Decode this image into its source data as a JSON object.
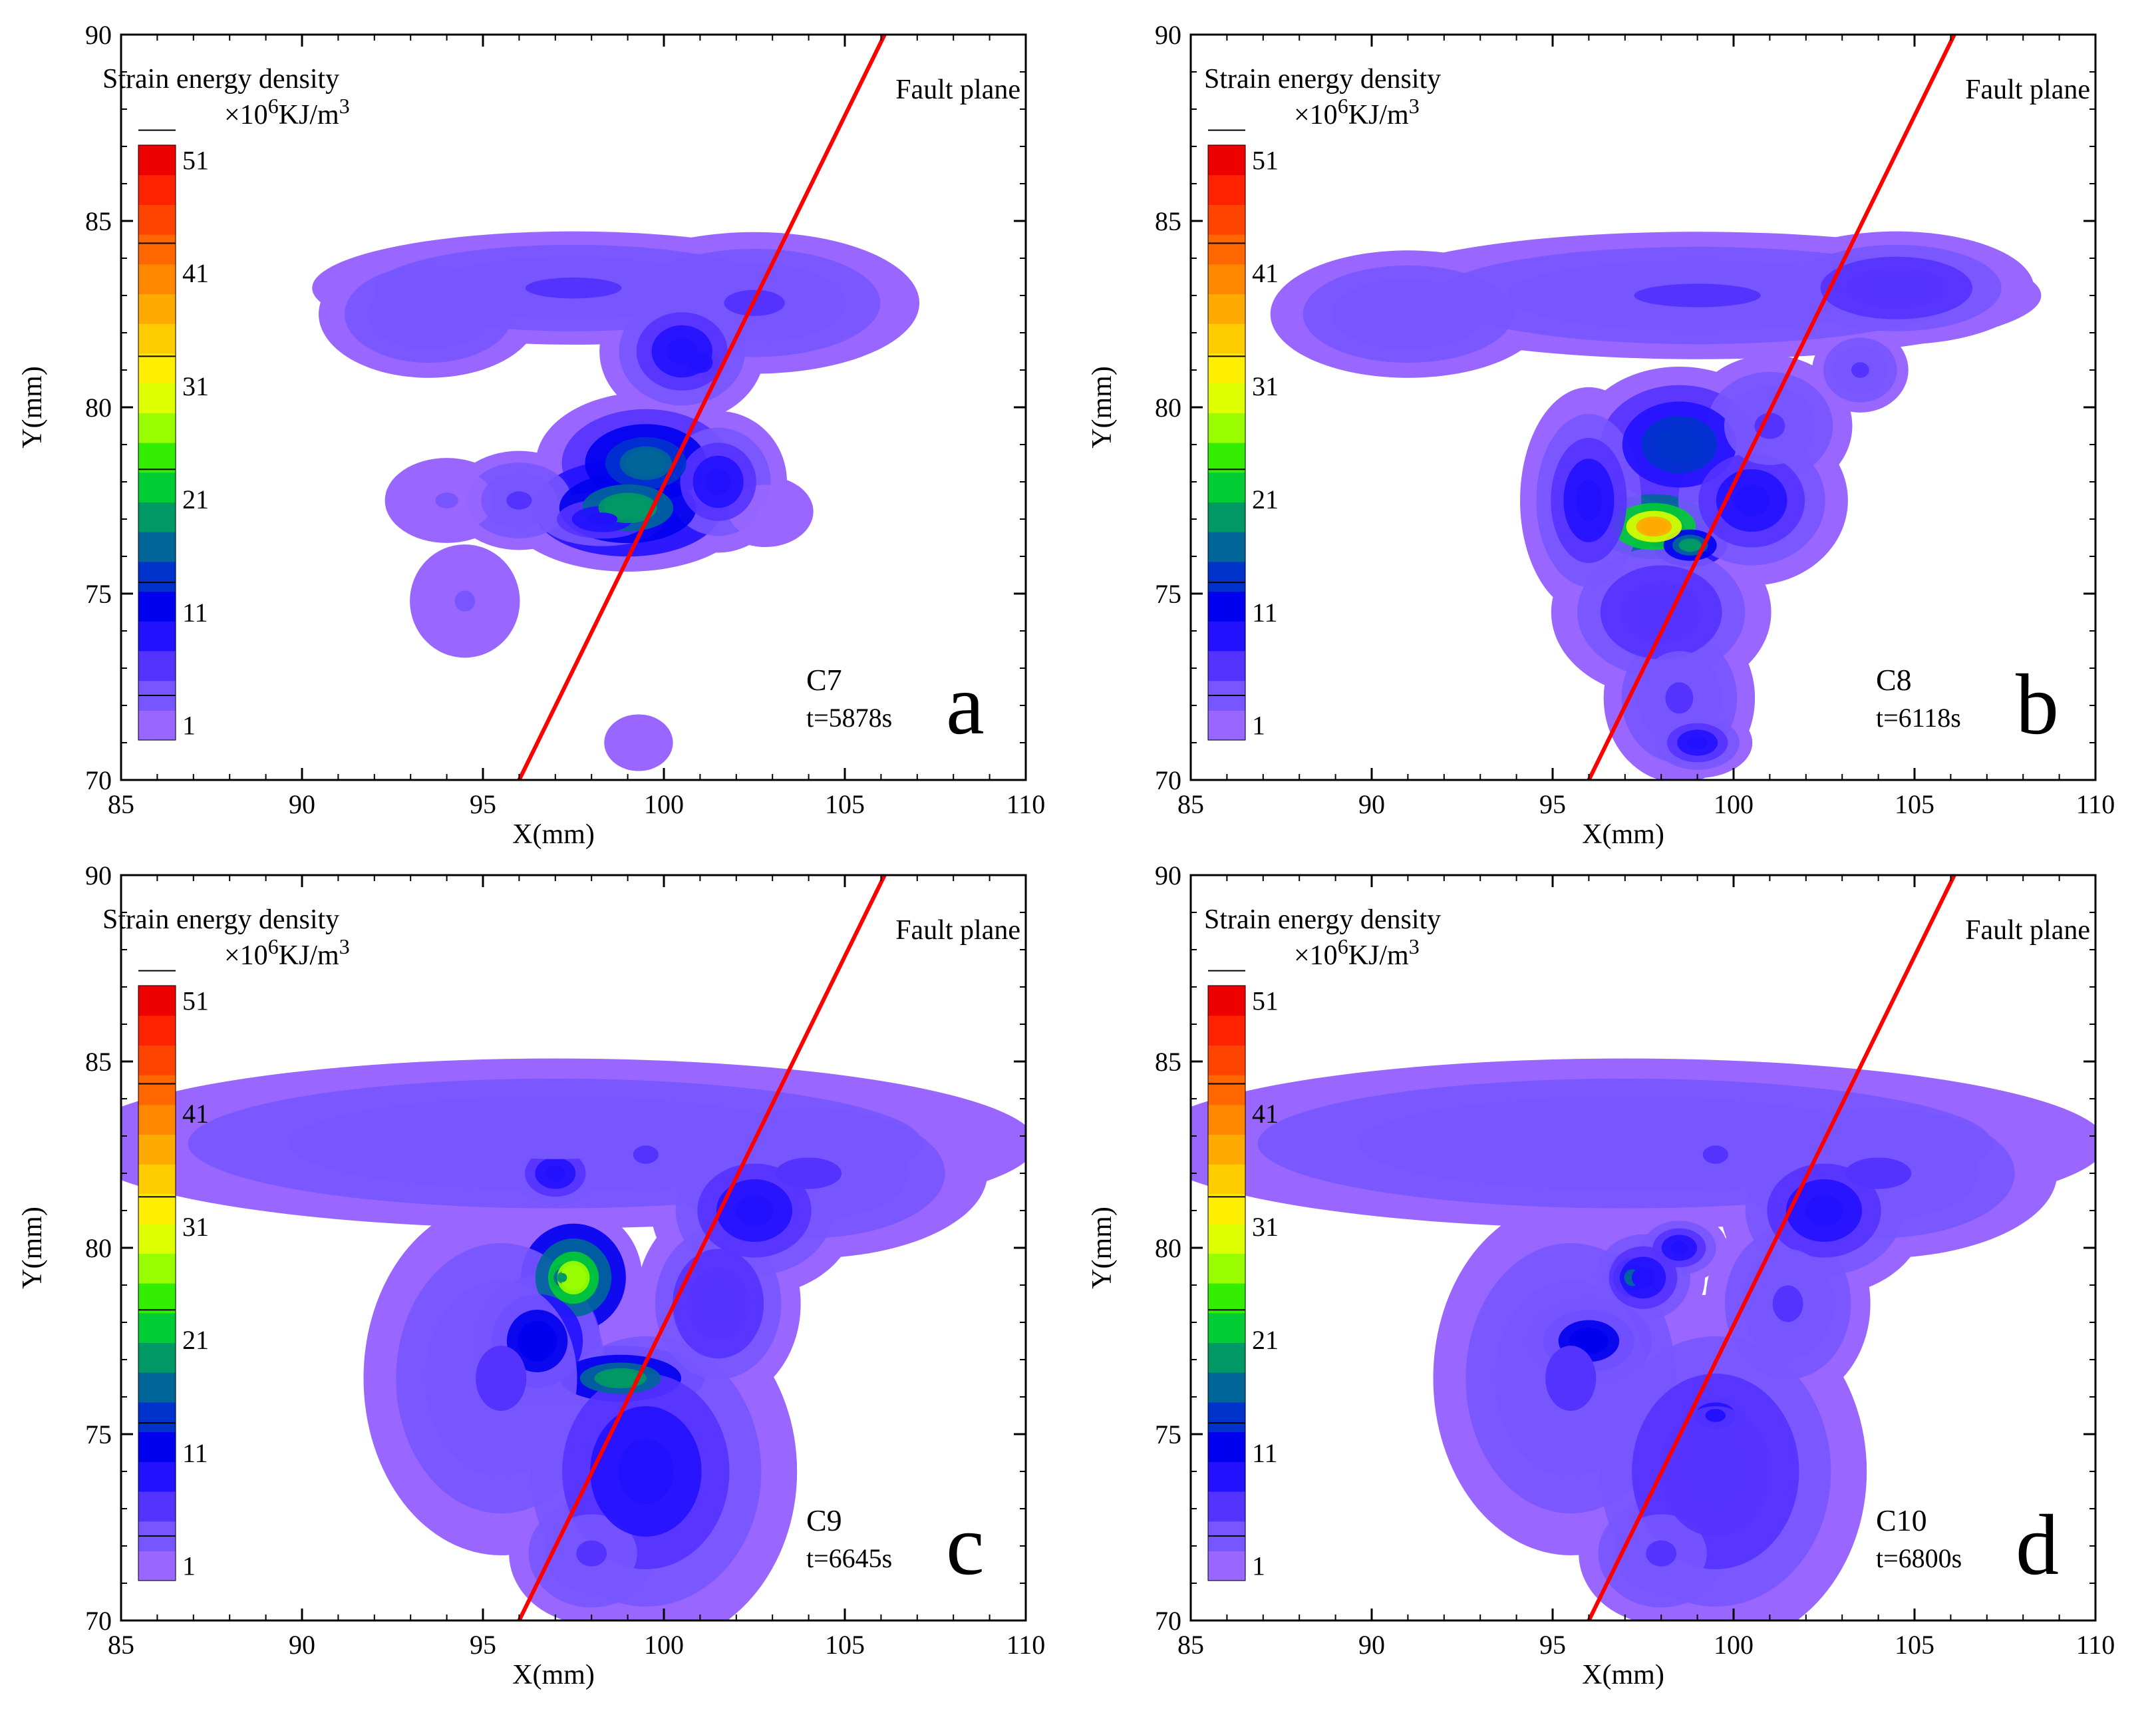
{
  "chart_data": [
    {
      "type": "contour",
      "panel_letter": "a",
      "specimen": "C7",
      "time_label": "t=5878s",
      "xlabel": "X(mm)",
      "ylabel": "Y(mm)",
      "xlim": [
        85,
        110
      ],
      "ylim": [
        70,
        90
      ],
      "x_ticks": [
        85,
        90,
        95,
        100,
        105,
        110
      ],
      "y_ticks": [
        70,
        75,
        80,
        85,
        90
      ],
      "colorbar_title": "Strain energy density",
      "colorbar_unit": "×10^6KJ/m^3",
      "colorbar_ticks": [
        1,
        11,
        21,
        31,
        41,
        51
      ],
      "fault_label": "Fault plane",
      "fault_line": [
        [
          96,
          70
        ],
        [
          106.1,
          90
        ]
      ],
      "blobs": [
        {
          "x": 97.5,
          "y": 83.2,
          "sx": 3.8,
          "sy": 0.8,
          "v": 6
        },
        {
          "x": 102.5,
          "y": 82.8,
          "sx": 2.4,
          "sy": 1.0,
          "v": 6
        },
        {
          "x": 93.5,
          "y": 82.5,
          "sx": 1.6,
          "sy": 0.9,
          "v": 4
        },
        {
          "x": 100.5,
          "y": 81.5,
          "sx": 1.2,
          "sy": 1.0,
          "v": 8
        },
        {
          "x": 101.0,
          "y": 81.2,
          "sx": 0.5,
          "sy": 0.4,
          "v": 8
        },
        {
          "x": 99.5,
          "y": 78.5,
          "sx": 1.6,
          "sy": 1.0,
          "v": 16
        },
        {
          "x": 99.0,
          "y": 77.3,
          "sx": 1.8,
          "sy": 0.9,
          "v": 20
        },
        {
          "x": 98.3,
          "y": 77.0,
          "sx": 1.2,
          "sy": 0.5,
          "v": 8
        },
        {
          "x": 101.5,
          "y": 78.0,
          "sx": 1.0,
          "sy": 1.0,
          "v": 10
        },
        {
          "x": 96.0,
          "y": 77.5,
          "sx": 1.0,
          "sy": 0.7,
          "v": 5
        },
        {
          "x": 94.0,
          "y": 77.5,
          "sx": 0.9,
          "sy": 0.6,
          "v": 3
        },
        {
          "x": 94.5,
          "y": 74.8,
          "sx": 0.8,
          "sy": 0.8,
          "v": 3
        },
        {
          "x": 102.8,
          "y": 77.2,
          "sx": 0.7,
          "sy": 0.5,
          "v": 2
        },
        {
          "x": 99.3,
          "y": 71.0,
          "sx": 0.5,
          "sy": 0.4,
          "v": 2
        }
      ]
    },
    {
      "type": "contour",
      "panel_letter": "b",
      "specimen": "C8",
      "time_label": "t=6118s",
      "xlabel": "X(mm)",
      "ylabel": "Y(mm)",
      "xlim": [
        85,
        110
      ],
      "ylim": [
        70,
        90
      ],
      "x_ticks": [
        85,
        90,
        95,
        100,
        105,
        110
      ],
      "y_ticks": [
        70,
        75,
        80,
        85,
        90
      ],
      "colorbar_title": "Strain energy density",
      "colorbar_unit": "×10^6KJ/m^3",
      "colorbar_ticks": [
        1,
        11,
        21,
        31,
        41,
        51
      ],
      "fault_label": "Fault plane",
      "fault_line": [
        [
          96,
          70
        ],
        [
          106.1,
          90
        ]
      ],
      "blobs": [
        {
          "x": 99.0,
          "y": 83.0,
          "sx": 5.0,
          "sy": 0.9,
          "v": 6
        },
        {
          "x": 104.5,
          "y": 83.2,
          "sx": 2.0,
          "sy": 0.8,
          "v": 7
        },
        {
          "x": 91.0,
          "y": 82.5,
          "sx": 2.0,
          "sy": 0.9,
          "v": 4
        },
        {
          "x": 103.5,
          "y": 81.0,
          "sx": 0.7,
          "sy": 0.6,
          "v": 6
        },
        {
          "x": 98.5,
          "y": 79.0,
          "sx": 1.5,
          "sy": 1.1,
          "v": 15
        },
        {
          "x": 97.8,
          "y": 76.8,
          "sx": 1.1,
          "sy": 0.6,
          "v": 38
        },
        {
          "x": 98.8,
          "y": 76.3,
          "sx": 0.7,
          "sy": 0.4,
          "v": 20
        },
        {
          "x": 100.5,
          "y": 77.5,
          "sx": 1.4,
          "sy": 1.2,
          "v": 8
        },
        {
          "x": 96.0,
          "y": 77.5,
          "sx": 1.0,
          "sy": 1.6,
          "v": 8
        },
        {
          "x": 98.0,
          "y": 74.5,
          "sx": 1.6,
          "sy": 1.2,
          "v": 7
        },
        {
          "x": 98.5,
          "y": 72.2,
          "sx": 1.1,
          "sy": 1.2,
          "v": 6
        },
        {
          "x": 99.0,
          "y": 71.0,
          "sx": 0.8,
          "sy": 0.5,
          "v": 9
        },
        {
          "x": 101.0,
          "y": 79.5,
          "sx": 1.2,
          "sy": 1.0,
          "v": 5
        }
      ]
    },
    {
      "type": "contour",
      "panel_letter": "c",
      "specimen": "C9",
      "time_label": "t=6645s",
      "xlabel": "X(mm)",
      "ylabel": "Y(mm)",
      "xlim": [
        85,
        110
      ],
      "ylim": [
        70,
        90
      ],
      "x_ticks": [
        85,
        90,
        95,
        100,
        105,
        110
      ],
      "y_ticks": [
        70,
        75,
        80,
        85,
        90
      ],
      "colorbar_title": "Strain energy density",
      "colorbar_unit": "×10^6KJ/m^3",
      "colorbar_ticks": [
        1,
        11,
        21,
        31,
        41,
        51
      ],
      "fault_label": "Fault plane",
      "fault_line": [
        [
          96,
          70
        ],
        [
          106.1,
          90
        ]
      ],
      "blobs": [
        {
          "x": 97.0,
          "y": 82.8,
          "sx": 7.0,
          "sy": 1.2,
          "v": 4
        },
        {
          "x": 104.0,
          "y": 82.0,
          "sx": 2.6,
          "sy": 1.2,
          "v": 5
        },
        {
          "x": 99.5,
          "y": 82.5,
          "sx": 1.0,
          "sy": 0.7,
          "v": 5
        },
        {
          "x": 97.0,
          "y": 82.0,
          "sx": 0.8,
          "sy": 0.6,
          "v": 8
        },
        {
          "x": 102.5,
          "y": 81.0,
          "sx": 1.5,
          "sy": 1.2,
          "v": 10
        },
        {
          "x": 97.5,
          "y": 79.2,
          "sx": 1.0,
          "sy": 1.0,
          "v": 28
        },
        {
          "x": 97.2,
          "y": 79.2,
          "sx": 0.35,
          "sy": 0.35,
          "v": 20
        },
        {
          "x": 98.8,
          "y": 76.5,
          "sx": 1.6,
          "sy": 0.6,
          "v": 20
        },
        {
          "x": 96.5,
          "y": 77.5,
          "sx": 1.2,
          "sy": 1.2,
          "v": 12
        },
        {
          "x": 99.5,
          "y": 74.0,
          "sx": 2.2,
          "sy": 2.5,
          "v": 8
        },
        {
          "x": 95.5,
          "y": 76.5,
          "sx": 2.0,
          "sy": 2.5,
          "v": 6
        },
        {
          "x": 98.0,
          "y": 71.8,
          "sx": 1.2,
          "sy": 1.0,
          "v": 5
        },
        {
          "x": 101.5,
          "y": 78.5,
          "sx": 1.2,
          "sy": 1.4,
          "v": 7
        }
      ]
    },
    {
      "type": "contour",
      "panel_letter": "d",
      "specimen": "C10",
      "time_label": "t=6800s",
      "xlabel": "X(mm)",
      "ylabel": "Y(mm)",
      "xlim": [
        85,
        110
      ],
      "ylim": [
        70,
        90
      ],
      "x_ticks": [
        85,
        90,
        95,
        100,
        105,
        110
      ],
      "y_ticks": [
        70,
        75,
        80,
        85,
        90
      ],
      "colorbar_title": "Strain energy density",
      "colorbar_unit": "×10^6KJ/m^3",
      "colorbar_ticks": [
        1,
        11,
        21,
        31,
        41,
        51
      ],
      "fault_label": "Fault plane",
      "fault_line": [
        [
          96,
          70
        ],
        [
          106.1,
          90
        ]
      ],
      "blobs": [
        {
          "x": 97.0,
          "y": 82.8,
          "sx": 7.0,
          "sy": 1.2,
          "v": 4
        },
        {
          "x": 104.0,
          "y": 82.0,
          "sx": 2.6,
          "sy": 1.2,
          "v": 5
        },
        {
          "x": 99.5,
          "y": 82.5,
          "sx": 1.0,
          "sy": 0.7,
          "v": 5
        },
        {
          "x": 102.5,
          "y": 81.0,
          "sx": 1.5,
          "sy": 1.2,
          "v": 9
        },
        {
          "x": 97.2,
          "y": 79.2,
          "sx": 0.5,
          "sy": 0.5,
          "v": 18
        },
        {
          "x": 97.5,
          "y": 79.2,
          "sx": 0.9,
          "sy": 0.8,
          "v": 8
        },
        {
          "x": 98.5,
          "y": 80.0,
          "sx": 0.7,
          "sy": 0.5,
          "v": 10
        },
        {
          "x": 96.0,
          "y": 77.5,
          "sx": 1.2,
          "sy": 0.8,
          "v": 12
        },
        {
          "x": 99.5,
          "y": 75.5,
          "sx": 0.8,
          "sy": 0.5,
          "v": 10
        },
        {
          "x": 99.5,
          "y": 74.0,
          "sx": 2.2,
          "sy": 2.5,
          "v": 7
        },
        {
          "x": 95.5,
          "y": 76.5,
          "sx": 2.0,
          "sy": 2.5,
          "v": 6
        },
        {
          "x": 98.0,
          "y": 71.8,
          "sx": 1.2,
          "sy": 1.0,
          "v": 5
        },
        {
          "x": 101.5,
          "y": 78.5,
          "sx": 1.2,
          "sy": 1.4,
          "v": 6
        }
      ]
    }
  ],
  "colors": {
    "fault_line": "#ff0000",
    "colorbar": [
      "#9966ff",
      "#7755ff",
      "#5533ff",
      "#2211ff",
      "#0000ee",
      "#0033cc",
      "#006699",
      "#009966",
      "#00cc33",
      "#33ee00",
      "#99ff00",
      "#ddff00",
      "#ffee00",
      "#ffcc00",
      "#ffaa00",
      "#ff8800",
      "#ff6600",
      "#ff4400",
      "#ff2200",
      "#ee0000"
    ]
  }
}
